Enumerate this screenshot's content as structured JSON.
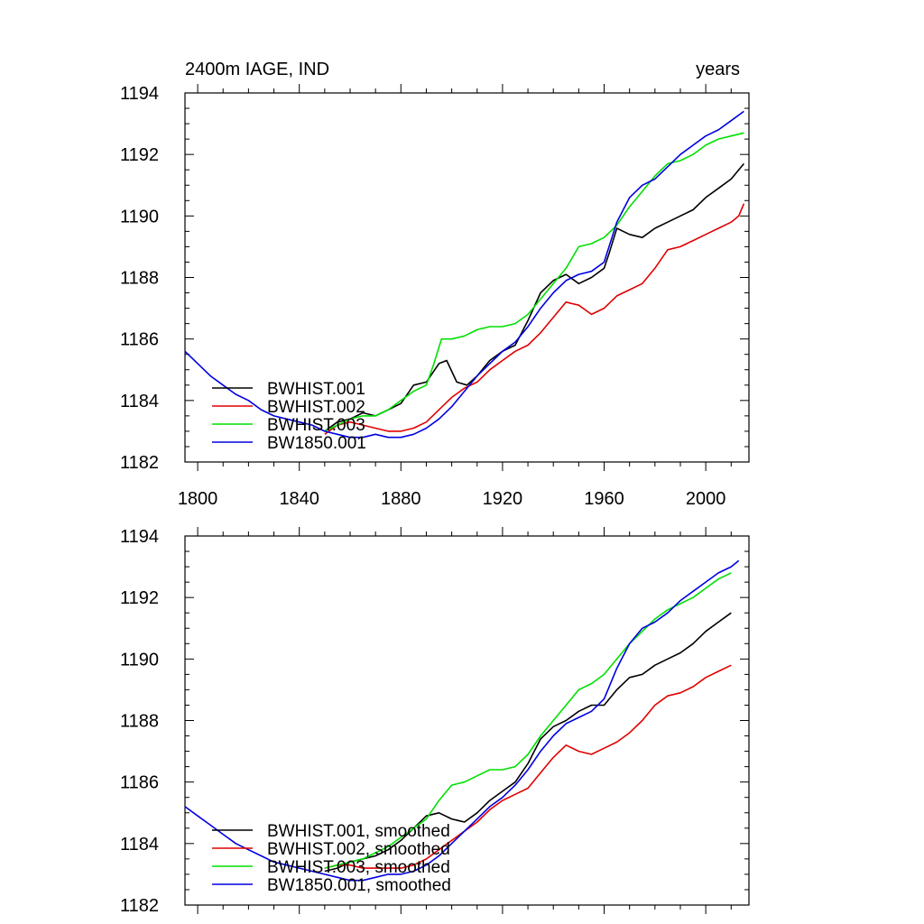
{
  "header": {
    "left": "2400m IAGE, IND",
    "right": "years"
  },
  "colors": {
    "BWHIST.001": "#000000",
    "BWHIST.002": "#e00000",
    "BWHIST.003": "#00e000",
    "BW1850.001": "#0000e0"
  },
  "chart_data": [
    {
      "type": "line",
      "title": "2400m IAGE, IND",
      "xlabel": "",
      "ylabel": "",
      "xlim": [
        1795,
        2017
      ],
      "ylim": [
        1182,
        1194
      ],
      "xticks": [
        "1800",
        "1840",
        "1880",
        "1920",
        "1960",
        "2000"
      ],
      "yticks": [
        "1182",
        "1184",
        "1186",
        "1188",
        "1190",
        "1192",
        "1194"
      ],
      "grid": false,
      "legend_position": "bottom-left",
      "series": [
        {
          "name": "BWHIST.001",
          "color": "#000000",
          "x": [
            1850,
            1855,
            1860,
            1865,
            1870,
            1875,
            1880,
            1885,
            1890,
            1895,
            1898,
            1902,
            1906,
            1910,
            1915,
            1920,
            1925,
            1930,
            1935,
            1940,
            1945,
            1950,
            1955,
            1960,
            1962,
            1965,
            1970,
            1975,
            1980,
            1985,
            1990,
            1995,
            2000,
            2005,
            2010,
            2013,
            2015
          ],
          "y": [
            1183.0,
            1183.3,
            1183.4,
            1183.6,
            1183.5,
            1183.7,
            1183.9,
            1184.5,
            1184.6,
            1185.2,
            1185.3,
            1184.6,
            1184.5,
            1184.8,
            1185.3,
            1185.6,
            1185.8,
            1186.6,
            1187.5,
            1187.9,
            1188.1,
            1187.8,
            1188.0,
            1188.3,
            1188.8,
            1189.6,
            1189.4,
            1189.3,
            1189.6,
            1189.8,
            1190.0,
            1190.2,
            1190.6,
            1190.9,
            1191.2,
            1191.5,
            1191.7
          ]
        },
        {
          "name": "BWHIST.002",
          "color": "#e00000",
          "x": [
            1850,
            1855,
            1860,
            1865,
            1870,
            1875,
            1880,
            1885,
            1890,
            1895,
            1900,
            1905,
            1910,
            1915,
            1920,
            1925,
            1930,
            1935,
            1940,
            1945,
            1950,
            1955,
            1960,
            1965,
            1970,
            1975,
            1980,
            1985,
            1990,
            1995,
            2000,
            2005,
            2010,
            2013,
            2015
          ],
          "y": [
            1182.9,
            1183.2,
            1183.3,
            1183.2,
            1183.1,
            1183.0,
            1183.0,
            1183.1,
            1183.3,
            1183.7,
            1184.1,
            1184.4,
            1184.6,
            1185.0,
            1185.3,
            1185.6,
            1185.8,
            1186.2,
            1186.7,
            1187.2,
            1187.1,
            1186.8,
            1187.0,
            1187.4,
            1187.6,
            1187.8,
            1188.3,
            1188.9,
            1189.0,
            1189.2,
            1189.4,
            1189.6,
            1189.8,
            1190.0,
            1190.4
          ]
        },
        {
          "name": "BWHIST.003",
          "color": "#00e000",
          "x": [
            1850,
            1855,
            1860,
            1865,
            1870,
            1875,
            1880,
            1885,
            1890,
            1893,
            1896,
            1900,
            1905,
            1910,
            1915,
            1920,
            1925,
            1930,
            1935,
            1940,
            1945,
            1950,
            1955,
            1960,
            1965,
            1970,
            1975,
            1980,
            1985,
            1990,
            1995,
            2000,
            2005,
            2010,
            2015
          ],
          "y": [
            1183.0,
            1183.2,
            1183.4,
            1183.5,
            1183.5,
            1183.7,
            1184.0,
            1184.3,
            1184.5,
            1185.2,
            1186.0,
            1186.0,
            1186.1,
            1186.3,
            1186.4,
            1186.4,
            1186.5,
            1186.8,
            1187.3,
            1187.8,
            1188.3,
            1189.0,
            1189.1,
            1189.3,
            1189.7,
            1190.3,
            1190.8,
            1191.3,
            1191.7,
            1191.8,
            1192.0,
            1192.3,
            1192.5,
            1192.6,
            1192.7
          ]
        },
        {
          "name": "BW1850.001",
          "color": "#0000e0",
          "x": [
            1795,
            1800,
            1805,
            1810,
            1815,
            1820,
            1825,
            1830,
            1835,
            1840,
            1845,
            1850,
            1855,
            1860,
            1865,
            1870,
            1875,
            1880,
            1885,
            1890,
            1895,
            1900,
            1905,
            1910,
            1915,
            1920,
            1925,
            1930,
            1935,
            1940,
            1945,
            1950,
            1955,
            1960,
            1965,
            1970,
            1975,
            1980,
            1985,
            1990,
            1995,
            2000,
            2005,
            2010,
            2015
          ],
          "y": [
            1185.6,
            1185.2,
            1184.8,
            1184.5,
            1184.2,
            1184.0,
            1183.7,
            1183.5,
            1183.4,
            1183.3,
            1183.2,
            1183.0,
            1182.9,
            1182.8,
            1182.8,
            1182.9,
            1182.8,
            1182.8,
            1182.9,
            1183.1,
            1183.4,
            1183.8,
            1184.3,
            1184.8,
            1185.2,
            1185.6,
            1185.9,
            1186.4,
            1187.0,
            1187.5,
            1187.9,
            1188.1,
            1188.2,
            1188.5,
            1189.8,
            1190.6,
            1191.0,
            1191.2,
            1191.6,
            1192.0,
            1192.3,
            1192.6,
            1192.8,
            1193.1,
            1193.4
          ]
        }
      ]
    },
    {
      "type": "line",
      "title": "",
      "xlabel": "",
      "ylabel": "",
      "xlim": [
        1795,
        2017
      ],
      "ylim": [
        1182,
        1194
      ],
      "xticks": [],
      "yticks": [
        "1182",
        "1184",
        "1186",
        "1188",
        "1190",
        "1192",
        "1194"
      ],
      "grid": false,
      "legend_position": "bottom-left",
      "series": [
        {
          "name": "BWHIST.001, smoothed",
          "color": "#000000",
          "x": [
            1850,
            1855,
            1860,
            1865,
            1870,
            1875,
            1880,
            1885,
            1890,
            1895,
            1900,
            1905,
            1910,
            1915,
            1920,
            1925,
            1930,
            1935,
            1940,
            1945,
            1950,
            1955,
            1960,
            1965,
            1970,
            1975,
            1980,
            1985,
            1990,
            1995,
            2000,
            2005,
            2010
          ],
          "y": [
            1183.1,
            1183.2,
            1183.4,
            1183.5,
            1183.6,
            1183.8,
            1184.1,
            1184.5,
            1184.9,
            1185.0,
            1184.8,
            1184.7,
            1185.0,
            1185.4,
            1185.7,
            1186.0,
            1186.6,
            1187.4,
            1187.8,
            1188.0,
            1188.3,
            1188.5,
            1188.5,
            1189.0,
            1189.4,
            1189.5,
            1189.8,
            1190.0,
            1190.2,
            1190.5,
            1190.9,
            1191.2,
            1191.5
          ]
        },
        {
          "name": "BWHIST.002, smoothed",
          "color": "#e00000",
          "x": [
            1850,
            1855,
            1860,
            1865,
            1870,
            1875,
            1880,
            1885,
            1890,
            1895,
            1900,
            1905,
            1910,
            1915,
            1920,
            1925,
            1930,
            1935,
            1940,
            1945,
            1950,
            1955,
            1960,
            1965,
            1970,
            1975,
            1980,
            1985,
            1990,
            1995,
            2000,
            2005,
            2010
          ],
          "y": [
            1183.2,
            1183.3,
            1183.3,
            1183.2,
            1183.2,
            1183.2,
            1183.2,
            1183.3,
            1183.5,
            1183.8,
            1184.1,
            1184.4,
            1184.7,
            1185.1,
            1185.4,
            1185.6,
            1185.8,
            1186.3,
            1186.8,
            1187.2,
            1187.0,
            1186.9,
            1187.1,
            1187.3,
            1187.6,
            1188.0,
            1188.5,
            1188.8,
            1188.9,
            1189.1,
            1189.4,
            1189.6,
            1189.8
          ]
        },
        {
          "name": "BWHIST.003, smoothed",
          "color": "#00e000",
          "x": [
            1850,
            1855,
            1860,
            1865,
            1870,
            1875,
            1880,
            1885,
            1890,
            1895,
            1900,
            1905,
            1910,
            1915,
            1920,
            1925,
            1930,
            1935,
            1940,
            1945,
            1950,
            1955,
            1960,
            1965,
            1970,
            1975,
            1980,
            1985,
            1990,
            1995,
            2000,
            2005,
            2010
          ],
          "y": [
            1183.2,
            1183.3,
            1183.4,
            1183.5,
            1183.7,
            1183.9,
            1184.2,
            1184.5,
            1184.8,
            1185.4,
            1185.9,
            1186.0,
            1186.2,
            1186.4,
            1186.4,
            1186.5,
            1186.9,
            1187.5,
            1188.0,
            1188.5,
            1189.0,
            1189.2,
            1189.5,
            1190.0,
            1190.5,
            1190.9,
            1191.3,
            1191.6,
            1191.8,
            1192.0,
            1192.3,
            1192.6,
            1192.8
          ]
        },
        {
          "name": "BW1850.001, smoothed",
          "color": "#0000e0",
          "x": [
            1795,
            1800,
            1805,
            1810,
            1815,
            1820,
            1825,
            1830,
            1835,
            1840,
            1845,
            1850,
            1855,
            1860,
            1865,
            1870,
            1875,
            1880,
            1885,
            1890,
            1895,
            1900,
            1905,
            1910,
            1915,
            1920,
            1925,
            1930,
            1935,
            1940,
            1945,
            1950,
            1955,
            1960,
            1965,
            1970,
            1975,
            1980,
            1985,
            1990,
            1995,
            2000,
            2005,
            2010,
            2013
          ],
          "y": [
            1185.2,
            1184.9,
            1184.6,
            1184.3,
            1184.0,
            1183.8,
            1183.6,
            1183.4,
            1183.3,
            1183.2,
            1183.1,
            1183.0,
            1182.9,
            1182.8,
            1182.8,
            1182.9,
            1183.0,
            1183.0,
            1183.1,
            1183.3,
            1183.6,
            1184.0,
            1184.4,
            1184.8,
            1185.2,
            1185.5,
            1185.9,
            1186.4,
            1187.0,
            1187.5,
            1187.9,
            1188.1,
            1188.3,
            1188.7,
            1189.7,
            1190.5,
            1191.0,
            1191.2,
            1191.5,
            1191.9,
            1192.2,
            1192.5,
            1192.8,
            1193.0,
            1193.2
          ]
        }
      ]
    }
  ]
}
